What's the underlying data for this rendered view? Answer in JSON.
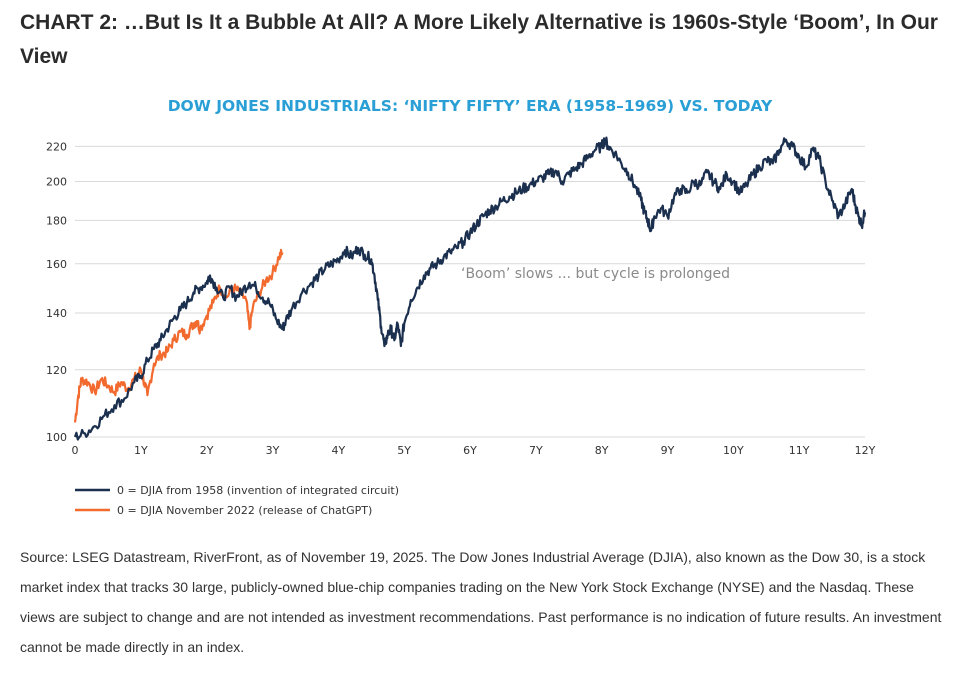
{
  "header": {
    "title": "CHART 2: …But Is It a Bubble At All? A More Likely Alternative is 1960s-Style ‘Boom’, In Our View"
  },
  "source_note": "Source: LSEG Datastream, RiverFront, as of November 19, 2025. The Dow Jones Industrial Average (DJIA), also known as the Dow 30, is a stock market index that tracks 30 large, publicly-owned blue-chip companies trading on the New York Stock Exchange (NYSE) and the Nasdaq. These views are subject to change and are not intended as investment recommendations. Past performance is no indication of future results. An investment cannot be made directly in an index.",
  "colors": {
    "navy": "#1b2f4e",
    "orange": "#f26a2e",
    "title_blue": "#2a9fd6",
    "grid": "#d9d9d9"
  },
  "chart_data": {
    "type": "line",
    "title": "DOW JONES INDUSTRIALS: ‘NIFTY FIFTY’ ERA (1958–1969) VS. TODAY",
    "xlabel": "",
    "ylabel": "",
    "xlim": [
      0,
      12
    ],
    "ylim": [
      100,
      230
    ],
    "y_scale": "log",
    "grid": "horizontal",
    "legend_position": "bottom-left",
    "x_ticks": [
      {
        "value": 0,
        "label": "0"
      },
      {
        "value": 1,
        "label": "1Y"
      },
      {
        "value": 2,
        "label": "2Y"
      },
      {
        "value": 3,
        "label": "3Y"
      },
      {
        "value": 4,
        "label": "4Y"
      },
      {
        "value": 5,
        "label": "5Y"
      },
      {
        "value": 6,
        "label": "6Y"
      },
      {
        "value": 7,
        "label": "7Y"
      },
      {
        "value": 8,
        "label": "8Y"
      },
      {
        "value": 9,
        "label": "9Y"
      },
      {
        "value": 10,
        "label": "10Y"
      },
      {
        "value": 11,
        "label": "11Y"
      },
      {
        "value": 12,
        "label": "12Y"
      }
    ],
    "y_ticks": [
      {
        "value": 100,
        "label": "100"
      },
      {
        "value": 120,
        "label": "120"
      },
      {
        "value": 140,
        "label": "140"
      },
      {
        "value": 160,
        "label": "160"
      },
      {
        "value": 180,
        "label": "180"
      },
      {
        "value": 200,
        "label": "200"
      },
      {
        "value": 220,
        "label": "220"
      }
    ],
    "annotation": "‘Boom’ slows ... but cycle is prolonged",
    "series": [
      {
        "name": "0 = DJIA from 1958 (invention of integrated circuit)",
        "color": "#1b2f4e",
        "points": [
          [
            0.0,
            100
          ],
          [
            0.15,
            101
          ],
          [
            0.3,
            103
          ],
          [
            0.45,
            106
          ],
          [
            0.6,
            109
          ],
          [
            0.75,
            111
          ],
          [
            0.9,
            116
          ],
          [
            1.0,
            118
          ],
          [
            1.1,
            123
          ],
          [
            1.2,
            127
          ],
          [
            1.3,
            130
          ],
          [
            1.4,
            134
          ],
          [
            1.5,
            138
          ],
          [
            1.6,
            141
          ],
          [
            1.7,
            144
          ],
          [
            1.8,
            148
          ],
          [
            1.9,
            150
          ],
          [
            2.0,
            152
          ],
          [
            2.05,
            155
          ],
          [
            2.15,
            150
          ],
          [
            2.25,
            146
          ],
          [
            2.35,
            150
          ],
          [
            2.45,
            146
          ],
          [
            2.55,
            149
          ],
          [
            2.65,
            152
          ],
          [
            2.75,
            150
          ],
          [
            2.85,
            146
          ],
          [
            2.95,
            144
          ],
          [
            3.05,
            138
          ],
          [
            3.15,
            134
          ],
          [
            3.2,
            137
          ],
          [
            3.3,
            142
          ],
          [
            3.45,
            148
          ],
          [
            3.6,
            152
          ],
          [
            3.7,
            155
          ],
          [
            3.8,
            158
          ],
          [
            3.9,
            160
          ],
          [
            4.0,
            162
          ],
          [
            4.1,
            166
          ],
          [
            4.2,
            163
          ],
          [
            4.3,
            167
          ],
          [
            4.4,
            164
          ],
          [
            4.5,
            162
          ],
          [
            4.55,
            155
          ],
          [
            4.6,
            145
          ],
          [
            4.65,
            135
          ],
          [
            4.7,
            128
          ],
          [
            4.75,
            132
          ],
          [
            4.8,
            134
          ],
          [
            4.85,
            130
          ],
          [
            4.9,
            136
          ],
          [
            4.95,
            128
          ],
          [
            5.0,
            136
          ],
          [
            5.1,
            145
          ],
          [
            5.2,
            150
          ],
          [
            5.3,
            155
          ],
          [
            5.4,
            158
          ],
          [
            5.5,
            160
          ],
          [
            5.6,
            163
          ],
          [
            5.7,
            165
          ],
          [
            5.8,
            167
          ],
          [
            5.9,
            170
          ],
          [
            6.0,
            174
          ],
          [
            6.1,
            178
          ],
          [
            6.2,
            182
          ],
          [
            6.3,
            185
          ],
          [
            6.4,
            187
          ],
          [
            6.5,
            190
          ],
          [
            6.6,
            192
          ],
          [
            6.7,
            194
          ],
          [
            6.8,
            196
          ],
          [
            6.9,
            198
          ],
          [
            7.0,
            200
          ],
          [
            7.1,
            202
          ],
          [
            7.2,
            204
          ],
          [
            7.3,
            206
          ],
          [
            7.4,
            200
          ],
          [
            7.5,
            204
          ],
          [
            7.6,
            207
          ],
          [
            7.7,
            210
          ],
          [
            7.8,
            214
          ],
          [
            7.9,
            218
          ],
          [
            8.0,
            220
          ],
          [
            8.05,
            224
          ],
          [
            8.1,
            220
          ],
          [
            8.2,
            216
          ],
          [
            8.3,
            210
          ],
          [
            8.4,
            205
          ],
          [
            8.5,
            198
          ],
          [
            8.6,
            190
          ],
          [
            8.65,
            184
          ],
          [
            8.7,
            180
          ],
          [
            8.75,
            175
          ],
          [
            8.8,
            182
          ],
          [
            8.9,
            186
          ],
          [
            9.0,
            182
          ],
          [
            9.1,
            192
          ],
          [
            9.2,
            196
          ],
          [
            9.3,
            194
          ],
          [
            9.4,
            200
          ],
          [
            9.5,
            198
          ],
          [
            9.6,
            205
          ],
          [
            9.7,
            200
          ],
          [
            9.8,
            196
          ],
          [
            9.9,
            204
          ],
          [
            10.0,
            200
          ],
          [
            10.1,
            194
          ],
          [
            10.2,
            198
          ],
          [
            10.3,
            204
          ],
          [
            10.4,
            208
          ],
          [
            10.5,
            212
          ],
          [
            10.6,
            210
          ],
          [
            10.7,
            218
          ],
          [
            10.8,
            224
          ],
          [
            10.9,
            220
          ],
          [
            11.0,
            214
          ],
          [
            11.1,
            208
          ],
          [
            11.2,
            218
          ],
          [
            11.3,
            213
          ],
          [
            11.4,
            200
          ],
          [
            11.5,
            190
          ],
          [
            11.6,
            182
          ],
          [
            11.7,
            188
          ],
          [
            11.8,
            196
          ],
          [
            11.85,
            188
          ],
          [
            11.9,
            182
          ],
          [
            11.95,
            178
          ],
          [
            12.0,
            184
          ]
        ]
      },
      {
        "name": "0 = DJIA November 2022 (release of ChatGPT)",
        "color": "#f26a2e",
        "points": [
          [
            0.0,
            104
          ],
          [
            0.05,
            112
          ],
          [
            0.1,
            117
          ],
          [
            0.2,
            116
          ],
          [
            0.3,
            113
          ],
          [
            0.4,
            117
          ],
          [
            0.5,
            115
          ],
          [
            0.6,
            113
          ],
          [
            0.7,
            116
          ],
          [
            0.8,
            114
          ],
          [
            0.9,
            117
          ],
          [
            1.0,
            120
          ],
          [
            1.05,
            116
          ],
          [
            1.1,
            112
          ],
          [
            1.2,
            122
          ],
          [
            1.3,
            125
          ],
          [
            1.4,
            126
          ],
          [
            1.5,
            130
          ],
          [
            1.6,
            133
          ],
          [
            1.7,
            132
          ],
          [
            1.8,
            136
          ],
          [
            1.85,
            137
          ],
          [
            1.9,
            134
          ],
          [
            2.0,
            139
          ],
          [
            2.1,
            144
          ],
          [
            2.2,
            150
          ],
          [
            2.3,
            146
          ],
          [
            2.4,
            150
          ],
          [
            2.5,
            148
          ],
          [
            2.6,
            145
          ],
          [
            2.65,
            134
          ],
          [
            2.7,
            142
          ],
          [
            2.8,
            148
          ],
          [
            2.9,
            153
          ],
          [
            3.0,
            156
          ],
          [
            3.1,
            163
          ],
          [
            3.15,
            165
          ]
        ]
      }
    ]
  }
}
